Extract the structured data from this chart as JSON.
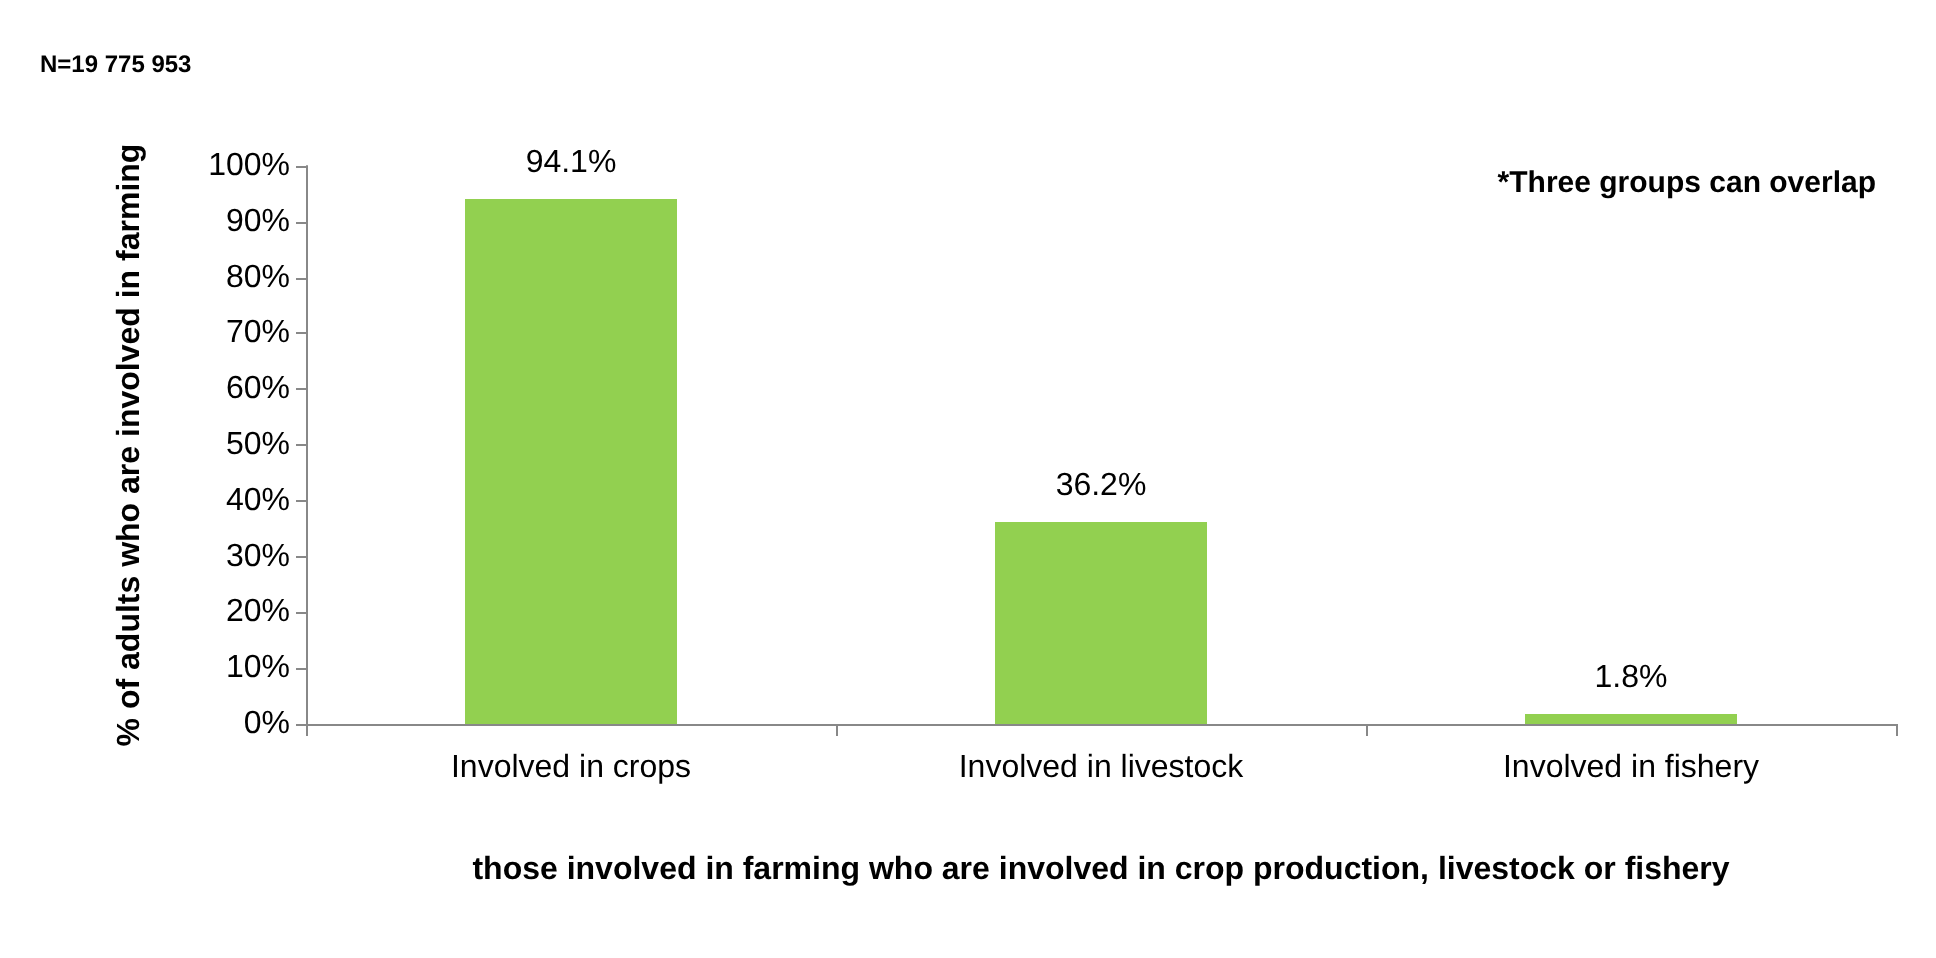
{
  "chart_data": {
    "type": "bar",
    "categories": [
      "Involved in crops",
      "Involved in livestock",
      "Involved in fishery"
    ],
    "values": [
      94.1,
      36.2,
      1.8
    ],
    "value_labels": [
      "94.1%",
      "36.2%",
      "1.8%"
    ],
    "color": "#92d050",
    "xlabel": "those involved in farming who are involved in crop production, livestock or fishery",
    "ylabel": "% of adults who are involved in farming",
    "ylim": [
      0,
      100
    ],
    "yticks": [
      {
        "value": 0,
        "label": "0%"
      },
      {
        "value": 10,
        "label": "10%"
      },
      {
        "value": 20,
        "label": "20%"
      },
      {
        "value": 30,
        "label": "30%"
      },
      {
        "value": 40,
        "label": "40%"
      },
      {
        "value": 50,
        "label": "50%"
      },
      {
        "value": 60,
        "label": "60%"
      },
      {
        "value": 70,
        "label": "70%"
      },
      {
        "value": 80,
        "label": "80%"
      },
      {
        "value": 90,
        "label": "90%"
      },
      {
        "value": 100,
        "label": "100%"
      }
    ],
    "annotations": [
      "N=19 775 953",
      "*Three groups can overlap"
    ],
    "grid": false
  }
}
